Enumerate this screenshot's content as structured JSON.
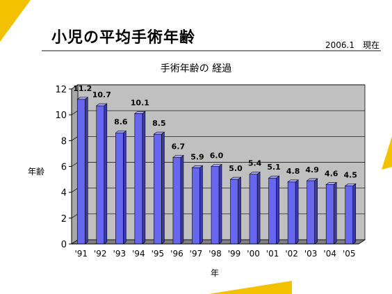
{
  "slide": {
    "title": "小児の平均手術年齢",
    "date": "2006.1　現在"
  },
  "chart_data": {
    "type": "bar",
    "title": "手術年齢の 経過",
    "xlabel": "年",
    "ylabel": "年齢",
    "categories": [
      "'91",
      "'92",
      "'93",
      "'94",
      "'95",
      "'96",
      "'97",
      "'98",
      "'99",
      "'00",
      "'01",
      "'02",
      "'03",
      "'04",
      "'05"
    ],
    "values": [
      11.2,
      10.7,
      8.6,
      10.1,
      8.5,
      6.7,
      5.9,
      6.0,
      5.0,
      5.4,
      5.1,
      4.8,
      4.9,
      4.6,
      4.5
    ],
    "value_labels": [
      "11.2",
      "10.7",
      "8.6",
      "10.1",
      "8.5",
      "6.7",
      "5.9",
      "6.0",
      "5.0",
      "5.4",
      "5.1",
      "4.8",
      "4.9",
      "4.6",
      "4.5"
    ],
    "yticks": [
      "0",
      "2",
      "4",
      "6",
      "8",
      "10",
      "12"
    ],
    "ylim": [
      0,
      12
    ],
    "grid": true,
    "legend": "none",
    "colors": {
      "bar_front": "#6666ee",
      "bar_top": "#a6a6ff",
      "bar_side": "#3a3ab0",
      "plot_bg": "#c0c0c0",
      "floor": "#808080",
      "accent_yellow": "#f2c200"
    }
  }
}
